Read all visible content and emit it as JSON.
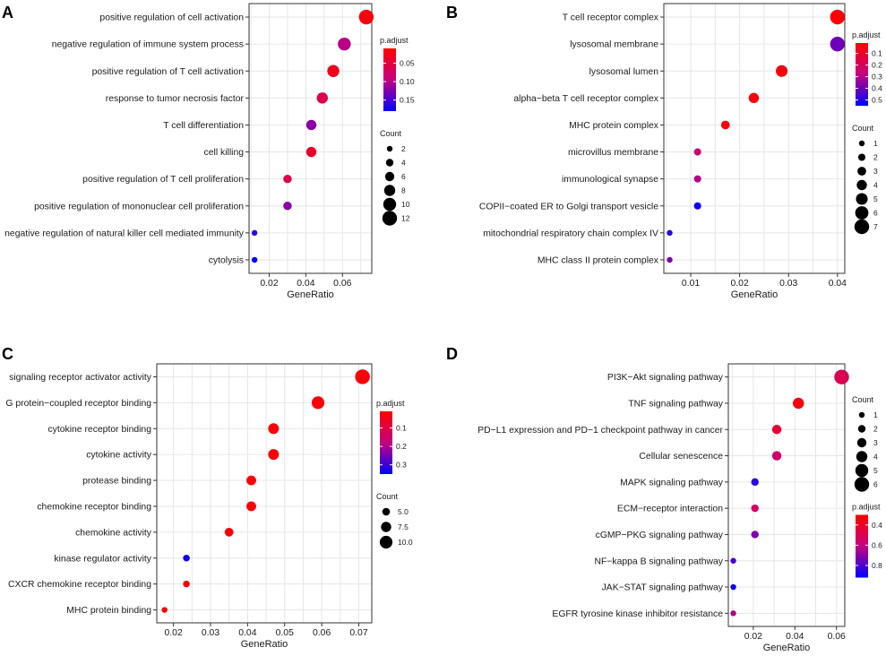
{
  "chart_data": [
    {
      "panel": "A",
      "type": "scatter",
      "xlabel": "GeneRatio",
      "xlim": [
        0.009,
        0.076
      ],
      "xticks": [
        0.02,
        0.04,
        0.06
      ],
      "xtick_labels": [
        "0.02",
        "0.04",
        "0.06"
      ],
      "categories": [
        "positive regulation of cell activation",
        "negative regulation of immune system process",
        "positive regulation of T cell activation",
        "response to tumor necrosis factor",
        "T cell differentiation",
        "cell killing",
        "positive regulation of T cell proliferation",
        "positive regulation of mononuclear cell proliferation",
        "negative regulation of natural killer cell mediated immunity",
        "cytolysis"
      ],
      "gene_ratio": [
        0.073,
        0.061,
        0.055,
        0.049,
        0.043,
        0.043,
        0.03,
        0.03,
        0.012,
        0.012
      ],
      "count": [
        12,
        10,
        9,
        8,
        7,
        7,
        5,
        5,
        2,
        2
      ],
      "p_adjust": [
        0.02,
        0.1,
        0.03,
        0.06,
        0.12,
        0.04,
        0.06,
        0.12,
        0.16,
        0.18
      ],
      "legend_order": "colorbar-first",
      "color_legend": {
        "title": "p.adjust",
        "min": 0.01,
        "max": 0.18,
        "ticks": [
          0.05,
          0.1,
          0.15
        ],
        "tick_labels": [
          "0.05",
          "0.10",
          "0.15"
        ]
      },
      "size_legend": {
        "title": "Count",
        "min": 2,
        "max": 12,
        "values": [
          2,
          4,
          6,
          8,
          10,
          12
        ],
        "labels": [
          "2",
          "4",
          "6",
          "8",
          "10",
          "12"
        ]
      }
    },
    {
      "panel": "B",
      "type": "scatter",
      "xlabel": "GeneRatio",
      "xlim": [
        0.0045,
        0.0415
      ],
      "xticks": [
        0.01,
        0.02,
        0.03,
        0.04
      ],
      "xtick_labels": [
        "0.01",
        "0.02",
        "0.03",
        "0.04"
      ],
      "categories": [
        "T cell receptor complex",
        "lysosomal membrane",
        "lysosomal lumen",
        "alpha−beta T cell receptor complex",
        "MHC protein complex",
        "microvillus membrane",
        "immunological synapse",
        "COPII−coated ER to Golgi transport vesicle",
        "mitochondrial respiratory chain complex IV",
        "MHC class II protein complex"
      ],
      "gene_ratio": [
        0.04,
        0.04,
        0.0286,
        0.0229,
        0.0171,
        0.0114,
        0.0114,
        0.0114,
        0.0057,
        0.0057
      ],
      "count": [
        7,
        7,
        5,
        4,
        3,
        2,
        2,
        2,
        1,
        1
      ],
      "p_adjust": [
        0.02,
        0.4,
        0.04,
        0.03,
        0.03,
        0.25,
        0.3,
        0.53,
        0.5,
        0.38
      ],
      "legend_order": "colorbar-first",
      "color_legend": {
        "title": "p.adjust",
        "min": 0.01,
        "max": 0.55,
        "ticks": [
          0.1,
          0.2,
          0.3,
          0.4,
          0.5
        ],
        "tick_labels": [
          "0.1",
          "0.2",
          "0.3",
          "0.4",
          "0.5"
        ]
      },
      "size_legend": {
        "title": "Count",
        "min": 1,
        "max": 7,
        "values": [
          1,
          2,
          3,
          4,
          5,
          6,
          7
        ],
        "labels": [
          "1",
          "2",
          "3",
          "4",
          "5",
          "6",
          "7"
        ]
      }
    },
    {
      "panel": "C",
      "type": "scatter",
      "xlabel": "GeneRatio",
      "xlim": [
        0.0155,
        0.0735
      ],
      "xticks": [
        0.02,
        0.03,
        0.04,
        0.05,
        0.06,
        0.07
      ],
      "xtick_labels": [
        "0.02",
        "0.03",
        "0.04",
        "0.05",
        "0.06",
        "0.07"
      ],
      "categories": [
        "signaling receptor activator activity",
        "G protein−coupled receptor binding",
        "cytokine receptor binding",
        "cytokine activity",
        "protease binding",
        "chemokine receptor binding",
        "chemokine activity",
        "kinase regulator activity",
        "CXCR chemokine receptor binding",
        "MHC protein binding"
      ],
      "gene_ratio": [
        0.071,
        0.059,
        0.047,
        0.047,
        0.041,
        0.041,
        0.035,
        0.0235,
        0.0235,
        0.0176
      ],
      "count": [
        12,
        10,
        8,
        8,
        7,
        7,
        6,
        4,
        4,
        3
      ],
      "p_adjust": [
        0.02,
        0.02,
        0.02,
        0.02,
        0.02,
        0.02,
        0.02,
        0.34,
        0.02,
        0.02
      ],
      "legend_order": "colorbar-first",
      "color_legend": {
        "title": "p.adjust",
        "min": 0.01,
        "max": 0.35,
        "ticks": [
          0.1,
          0.2,
          0.3
        ],
        "tick_labels": [
          "0.1",
          "0.2",
          "0.3"
        ]
      },
      "size_legend": {
        "title": "Count",
        "min": 3,
        "max": 12,
        "values": [
          5,
          7.5,
          10
        ],
        "labels": [
          "5.0",
          "7.5",
          "10.0"
        ]
      }
    },
    {
      "panel": "D",
      "type": "scatter",
      "xlabel": "GeneRatio",
      "xlim": [
        0.008,
        0.064
      ],
      "xticks": [
        0.02,
        0.04,
        0.06
      ],
      "xtick_labels": [
        "0.02",
        "0.04",
        "0.06"
      ],
      "categories": [
        "PI3K−Akt signaling pathway",
        "TNF signaling pathway",
        "PD−L1 expression and PD−1 checkpoint pathway in cancer",
        "Cellular senescence",
        "MAPK signaling pathway",
        "ECM−receptor interaction",
        "cGMP−PKG signaling pathway",
        "NF−kappa B signaling pathway",
        "JAK−STAT signaling pathway",
        "EGFR tyrosine kinase inhibitor resistance"
      ],
      "gene_ratio": [
        0.0625,
        0.0417,
        0.0313,
        0.0313,
        0.0208,
        0.0208,
        0.0208,
        0.0104,
        0.0104,
        0.0104
      ],
      "count": [
        6,
        4,
        3,
        3,
        2,
        2,
        2,
        1,
        1,
        1
      ],
      "p_adjust": [
        0.5,
        0.33,
        0.42,
        0.55,
        0.85,
        0.55,
        0.72,
        0.8,
        0.9,
        0.65
      ],
      "legend_order": "count-first",
      "color_legend": {
        "title": "p.adjust",
        "min": 0.3,
        "max": 0.92,
        "ticks": [
          0.4,
          0.6,
          0.8
        ],
        "tick_labels": [
          "0.4",
          "0.6",
          "0.8"
        ]
      },
      "size_legend": {
        "title": "Count",
        "min": 1,
        "max": 6,
        "values": [
          1,
          2,
          3,
          4,
          5,
          6
        ],
        "labels": [
          "1",
          "2",
          "3",
          "4",
          "5",
          "6"
        ]
      }
    }
  ],
  "colors": {
    "panel_bg": "#ffffff",
    "grid": "#e6e6e6",
    "border": "#333333",
    "low": "#ff0000",
    "high": "#0000ff",
    "dot_legend": "#000000",
    "text": "#1a1a1a"
  }
}
